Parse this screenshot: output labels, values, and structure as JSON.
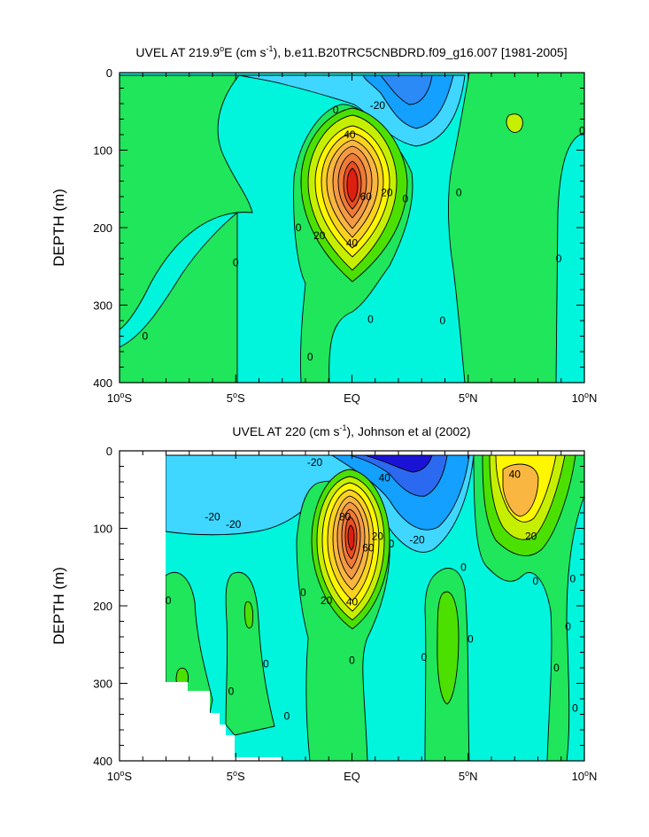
{
  "chart_data": [
    {
      "type": "heatmap",
      "subtype": "filled-contour",
      "title": "UVEL AT 219.9°E (cm s-1), b.e11.B20TRC5CNBDRD.f09_g16.007 [1981-2005]",
      "title_parts": {
        "lead": "UVEL AT 219.9",
        "sup1": "o",
        "mid": "E (cm s",
        "sup2": "-1",
        "tail": "), b.e11.B20TRC5CNBDRD.f09_g16.007 [1981-2005]"
      },
      "xlabel": "",
      "ylabel": "DEPTH (m)",
      "xlim": [
        -10,
        10
      ],
      "ylim": [
        400,
        0
      ],
      "x_ticks": [
        -10,
        -5,
        0,
        5,
        10
      ],
      "x_tick_labels": [
        {
          "num": "10",
          "sup": "o",
          "hemi": "S"
        },
        {
          "num": "5",
          "sup": "o",
          "hemi": "S"
        },
        {
          "num": "EQ",
          "sup": "",
          "hemi": ""
        },
        {
          "num": "5",
          "sup": "o",
          "hemi": "N"
        },
        {
          "num": "10",
          "sup": "o",
          "hemi": "N"
        }
      ],
      "y_ticks": [
        0,
        100,
        200,
        300,
        400
      ],
      "y_tick_labels": [
        "0",
        "100",
        "200",
        "300",
        "400"
      ],
      "units": "cm s-1",
      "features": [
        {
          "name": "Equatorial Undercurrent core",
          "lat": 0.0,
          "depth": 135,
          "max_value": 100
        },
        {
          "name": "surface westward flow",
          "lat": 2.5,
          "depth": 10,
          "min_value": -40
        },
        {
          "name": "northern eastward flow",
          "lat": 7.2,
          "depth": 60,
          "max_value": 10
        }
      ],
      "contour_labels": [
        {
          "text": "-20",
          "lat": 1.1,
          "depth": 42
        },
        {
          "text": "0",
          "lat": -0.7,
          "depth": 48
        },
        {
          "text": "40",
          "lat": -0.1,
          "depth": 80
        },
        {
          "text": "60",
          "lat": 0.6,
          "depth": 160
        },
        {
          "text": "20",
          "lat": 1.5,
          "depth": 155
        },
        {
          "text": "0",
          "lat": 2.3,
          "depth": 163
        },
        {
          "text": "0",
          "lat": -2.3,
          "depth": 200
        },
        {
          "text": "20",
          "lat": -1.4,
          "depth": 210
        },
        {
          "text": "40",
          "lat": 0.0,
          "depth": 220
        },
        {
          "text": "0",
          "lat": 4.6,
          "depth": 155
        },
        {
          "text": "0",
          "lat": 9.9,
          "depth": 75
        },
        {
          "text": "0",
          "lat": -5.0,
          "depth": 245
        },
        {
          "text": "0",
          "lat": 8.9,
          "depth": 240
        },
        {
          "text": "0",
          "lat": 0.8,
          "depth": 318
        },
        {
          "text": "0",
          "lat": 3.9,
          "depth": 320
        },
        {
          "text": "0",
          "lat": -8.9,
          "depth": 340
        },
        {
          "text": "0",
          "lat": -1.8,
          "depth": 367
        }
      ]
    },
    {
      "type": "heatmap",
      "subtype": "filled-contour",
      "title": "UVEL AT 220 (cm s-1), Johnson et al (2002)",
      "title_parts": {
        "lead": "UVEL AT 220 (cm s",
        "sup1": "-1",
        "mid": "), Johnson et al (2002)",
        "sup2": "",
        "tail": ""
      },
      "xlabel": "",
      "ylabel": "DEPTH (m)",
      "xlim": [
        -10,
        10
      ],
      "ylim": [
        400,
        0
      ],
      "x_ticks": [
        -10,
        -5,
        0,
        5,
        10
      ],
      "x_tick_labels": [
        {
          "num": "10",
          "sup": "o",
          "hemi": "S"
        },
        {
          "num": "5",
          "sup": "o",
          "hemi": "S"
        },
        {
          "num": "EQ",
          "sup": "",
          "hemi": ""
        },
        {
          "num": "5",
          "sup": "o",
          "hemi": "N"
        },
        {
          "num": "10",
          "sup": "o",
          "hemi": "N"
        }
      ],
      "y_ticks": [
        0,
        100,
        200,
        300,
        400
      ],
      "y_tick_labels": [
        "0",
        "100",
        "200",
        "300",
        "400"
      ],
      "units": "cm s-1",
      "data_lat_range": [
        -8,
        10
      ],
      "features": [
        {
          "name": "Equatorial Undercurrent core",
          "lat": -0.1,
          "depth": 110,
          "max_value": 100
        },
        {
          "name": "surface westward flow",
          "lat": 2.5,
          "depth": 15,
          "min_value": -60
        },
        {
          "name": "northern eastward flow",
          "lat": 7.0,
          "depth": 60,
          "max_value": 50
        }
      ],
      "contour_labels": [
        {
          "text": "-20",
          "lat": -1.6,
          "depth": 15
        },
        {
          "text": "40",
          "lat": 1.4,
          "depth": 35
        },
        {
          "text": "40",
          "lat": 7.0,
          "depth": 30
        },
        {
          "text": "-20",
          "lat": -6.0,
          "depth": 85
        },
        {
          "text": "-20",
          "lat": -5.1,
          "depth": 95
        },
        {
          "text": "80",
          "lat": -0.3,
          "depth": 85
        },
        {
          "text": "20",
          "lat": 1.1,
          "depth": 110
        },
        {
          "text": "60",
          "lat": 0.7,
          "depth": 125
        },
        {
          "text": "0",
          "lat": 1.7,
          "depth": 120
        },
        {
          "text": "-20",
          "lat": 2.8,
          "depth": 115
        },
        {
          "text": "20",
          "lat": 7.7,
          "depth": 110
        },
        {
          "text": "0",
          "lat": 4.8,
          "depth": 150
        },
        {
          "text": "0",
          "lat": -2.1,
          "depth": 183
        },
        {
          "text": "20",
          "lat": -1.1,
          "depth": 193
        },
        {
          "text": "40",
          "lat": 0.0,
          "depth": 195
        },
        {
          "text": "0",
          "lat": 7.9,
          "depth": 168
        },
        {
          "text": "0",
          "lat": 9.5,
          "depth": 165
        },
        {
          "text": "0",
          "lat": -7.9,
          "depth": 193
        },
        {
          "text": "0",
          "lat": 9.3,
          "depth": 227
        },
        {
          "text": "0",
          "lat": 5.1,
          "depth": 243
        },
        {
          "text": "0",
          "lat": 0.0,
          "depth": 270
        },
        {
          "text": "0",
          "lat": 3.1,
          "depth": 266
        },
        {
          "text": "0",
          "lat": -3.7,
          "depth": 275
        },
        {
          "text": "0",
          "lat": 8.8,
          "depth": 280
        },
        {
          "text": "0",
          "lat": -5.2,
          "depth": 310
        },
        {
          "text": "0",
          "lat": -2.8,
          "depth": 342
        },
        {
          "text": "0",
          "lat": 9.6,
          "depth": 332
        }
      ]
    }
  ],
  "palette": {
    "level_neg60": "#1a13d6",
    "level_neg40": "#2b6af0",
    "level_neg20": "#13a0ff",
    "level_neg10": "#3fd6ff",
    "level_0": "#00f5dc",
    "level_10": "#1fe65a",
    "level_20": "#4be000",
    "level_30": "#c6ef00",
    "level_40": "#fff700",
    "level_50": "#fbd31f",
    "level_60": "#f9b640",
    "level_70": "#f39a44",
    "level_80": "#ef7b36",
    "level_90": "#e84e21",
    "level_100": "#dc1f0f"
  }
}
